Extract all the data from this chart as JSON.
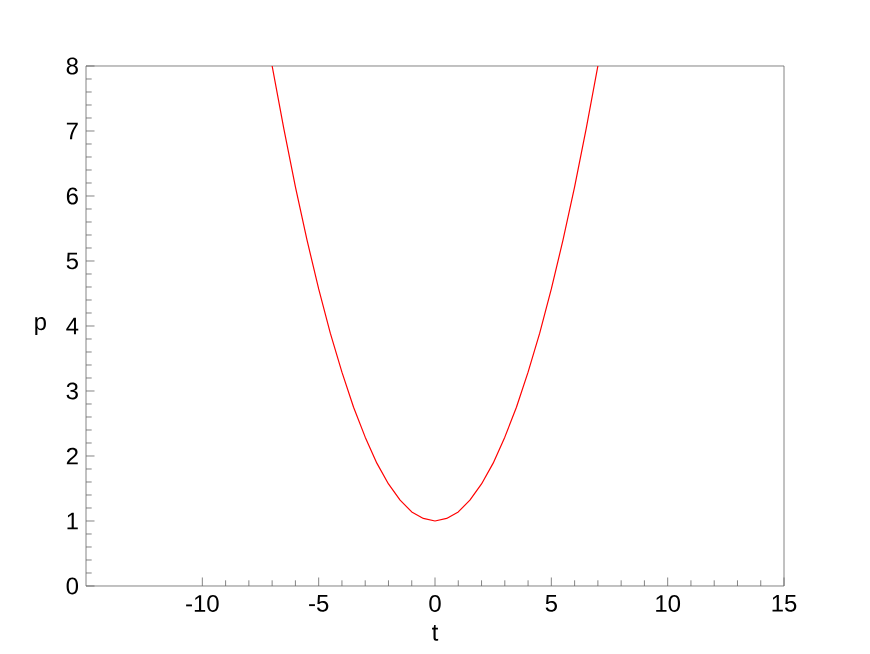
{
  "chart_data": {
    "type": "line",
    "xlabel": "t",
    "ylabel": "p",
    "xlim": [
      -15,
      15
    ],
    "ylim": [
      0,
      8
    ],
    "xticks": [
      -10,
      -5,
      0,
      5,
      10,
      15
    ],
    "yticks": [
      0,
      1,
      2,
      3,
      4,
      5,
      6,
      7,
      8
    ],
    "series": [
      {
        "color": "#ff0000",
        "x": [
          -7,
          -6.5,
          -6,
          -5.5,
          -5,
          -4.5,
          -4,
          -3.5,
          -3,
          -2.5,
          -2,
          -1.5,
          -1,
          -0.5,
          0,
          0.5,
          1,
          1.5,
          2,
          2.5,
          3,
          3.5,
          4,
          4.5,
          5,
          5.5,
          6,
          6.5,
          7
        ],
        "values": [
          8,
          7.04,
          6.14,
          5.32,
          4.57,
          3.89,
          3.29,
          2.75,
          2.29,
          1.89,
          1.57,
          1.32,
          1.14,
          1.04,
          1,
          1.04,
          1.14,
          1.32,
          1.57,
          1.89,
          2.29,
          2.75,
          3.29,
          3.89,
          4.57,
          5.32,
          6.14,
          7.04,
          8
        ]
      }
    ],
    "marker": "none",
    "line_style": "solid"
  }
}
